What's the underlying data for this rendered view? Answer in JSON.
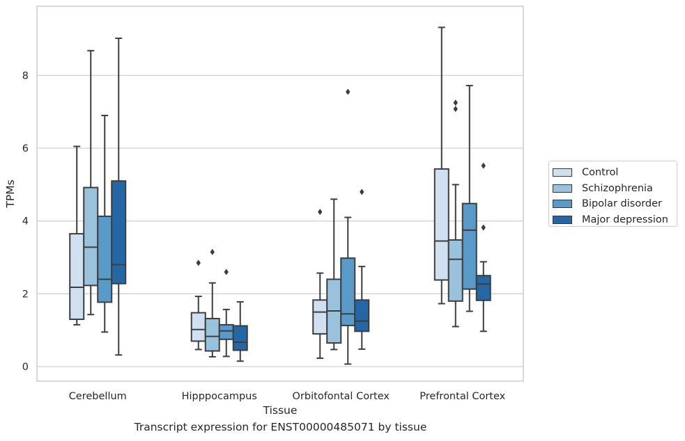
{
  "caption": "Transcript expression for ENST00000485071 by tissue",
  "colors": {
    "Control": "#d1e0f0",
    "Schizophrenia": "#9bc2dc",
    "Bipolar disorder": "#5a9ac8",
    "Major depression": "#2566a4",
    "edge": "#3d3d3d",
    "grid": "#cccccc"
  },
  "chart_data": {
    "type": "box",
    "xlabel": "Tissue",
    "ylabel": "TPMs",
    "ylim": [
      -0.4,
      9.9
    ],
    "yticks": [
      0,
      2,
      4,
      6,
      8
    ],
    "grid": "horizontal",
    "legend_position": "right",
    "categories": [
      "Cerebellum",
      "Hipppocampus",
      "Orbitofontal Cortex",
      "Prefrontal Cortex"
    ],
    "series": [
      {
        "name": "Control",
        "boxes": [
          {
            "whislo": 1.15,
            "q1": 1.3,
            "med": 2.18,
            "q3": 3.65,
            "whishi": 6.05,
            "fliers": []
          },
          {
            "whislo": 0.47,
            "q1": 0.7,
            "med": 1.02,
            "q3": 1.48,
            "whishi": 1.93,
            "fliers": [
              2.85
            ]
          },
          {
            "whislo": 0.23,
            "q1": 0.9,
            "med": 1.5,
            "q3": 1.83,
            "whishi": 2.57,
            "fliers": [
              4.25
            ]
          },
          {
            "whislo": 1.73,
            "q1": 2.38,
            "med": 3.45,
            "q3": 5.43,
            "whishi": 9.32,
            "fliers": []
          }
        ]
      },
      {
        "name": "Schizophrenia",
        "boxes": [
          {
            "whislo": 1.43,
            "q1": 2.23,
            "med": 3.28,
            "q3": 4.92,
            "whishi": 8.68,
            "fliers": []
          },
          {
            "whislo": 0.27,
            "q1": 0.43,
            "med": 0.83,
            "q3": 1.32,
            "whishi": 2.3,
            "fliers": [
              3.15
            ]
          },
          {
            "whislo": 0.47,
            "q1": 0.65,
            "med": 1.53,
            "q3": 2.4,
            "whishi": 4.6,
            "fliers": []
          },
          {
            "whislo": 1.1,
            "q1": 1.8,
            "med": 2.95,
            "q3": 3.48,
            "whishi": 5.0,
            "fliers": [
              7.08,
              7.25
            ]
          }
        ]
      },
      {
        "name": "Bipolar disorder",
        "boxes": [
          {
            "whislo": 0.95,
            "q1": 1.77,
            "med": 2.4,
            "q3": 4.13,
            "whishi": 6.9,
            "fliers": []
          },
          {
            "whislo": 0.28,
            "q1": 0.75,
            "med": 0.98,
            "q3": 1.15,
            "whishi": 1.57,
            "fliers": [
              2.6
            ]
          },
          {
            "whislo": 0.07,
            "q1": 1.13,
            "med": 1.45,
            "q3": 2.98,
            "whishi": 4.1,
            "fliers": [
              7.55
            ]
          },
          {
            "whislo": 1.52,
            "q1": 2.13,
            "med": 3.75,
            "q3": 4.48,
            "whishi": 7.72,
            "fliers": []
          }
        ]
      },
      {
        "name": "Major depression",
        "boxes": [
          {
            "whislo": 0.32,
            "q1": 2.28,
            "med": 2.8,
            "q3": 5.1,
            "whishi": 9.02,
            "fliers": []
          },
          {
            "whislo": 0.15,
            "q1": 0.45,
            "med": 0.67,
            "q3": 1.12,
            "whishi": 1.78,
            "fliers": []
          },
          {
            "whislo": 0.48,
            "q1": 0.97,
            "med": 1.25,
            "q3": 1.83,
            "whishi": 2.75,
            "fliers": [
              4.8
            ]
          },
          {
            "whislo": 0.97,
            "q1": 1.82,
            "med": 2.27,
            "q3": 2.5,
            "whishi": 2.88,
            "fliers": [
              3.82,
              5.52
            ]
          }
        ]
      }
    ]
  }
}
